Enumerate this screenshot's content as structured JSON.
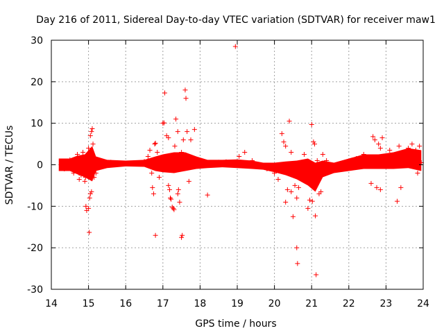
{
  "chart_data": {
    "type": "scatter",
    "title": "Day 216 of 2011, Sidereal Day-to-day VTEC variation (SDTVAR) for receiver maw1",
    "xlabel": "GPS time / hours",
    "ylabel": "SDTVAR / TECUs",
    "xlim": [
      14,
      24
    ],
    "ylim": [
      -30,
      30
    ],
    "x_ticks": [
      14,
      15,
      16,
      17,
      18,
      19,
      20,
      21,
      22,
      23,
      24
    ],
    "y_ticks": [
      -30,
      -20,
      -10,
      0,
      10,
      20,
      30
    ],
    "x_tick_labels": [
      "14",
      "15",
      "16",
      "17",
      "18",
      "19",
      "20",
      "21",
      "22",
      "23",
      "24"
    ],
    "y_tick_labels": [
      "-30",
      "-20",
      "-10",
      "0",
      "10",
      "20",
      "30"
    ],
    "grid": true,
    "marker": "+",
    "series_color": "#ff0000",
    "series": [
      {
        "name": "SDTVAR",
        "points": [
          [
            14.3,
            0.5
          ],
          [
            14.35,
            -1.0
          ],
          [
            14.5,
            1.2
          ],
          [
            14.6,
            -2.0
          ],
          [
            14.7,
            2.5
          ],
          [
            14.75,
            -3.5
          ],
          [
            14.8,
            -2.5
          ],
          [
            14.85,
            3.0
          ],
          [
            14.9,
            -4.0
          ],
          [
            14.92,
            -3.0
          ],
          [
            15.0,
            4.0
          ],
          [
            15.05,
            7.0
          ],
          [
            15.08,
            8.0
          ],
          [
            15.1,
            8.7
          ],
          [
            15.12,
            5.0
          ],
          [
            15.15,
            -3.0
          ],
          [
            15.2,
            -2.0
          ],
          [
            14.93,
            -10.0
          ],
          [
            14.95,
            -11.0
          ],
          [
            15.0,
            -10.5
          ],
          [
            15.03,
            -8.0
          ],
          [
            15.05,
            -7.0
          ],
          [
            15.08,
            -6.5
          ],
          [
            15.02,
            -16.3
          ],
          [
            15.3,
            1.0
          ],
          [
            15.6,
            0.6
          ],
          [
            16.0,
            0.3
          ],
          [
            16.3,
            0.4
          ],
          [
            16.5,
            0.8
          ],
          [
            16.6,
            2.0
          ],
          [
            16.65,
            3.5
          ],
          [
            16.7,
            -2.0
          ],
          [
            16.72,
            -5.5
          ],
          [
            16.75,
            -7.0
          ],
          [
            16.78,
            5.0
          ],
          [
            16.8,
            5.2
          ],
          [
            16.85,
            3.0
          ],
          [
            16.8,
            -17.0
          ],
          [
            16.9,
            -3.0
          ],
          [
            17.0,
            10.0
          ],
          [
            17.03,
            10.1
          ],
          [
            17.05,
            17.3
          ],
          [
            17.1,
            7.0
          ],
          [
            17.15,
            6.5
          ],
          [
            17.15,
            -5.0
          ],
          [
            17.18,
            -6.0
          ],
          [
            17.2,
            -8.0
          ],
          [
            17.22,
            -8.3
          ],
          [
            17.25,
            -10.2
          ],
          [
            17.28,
            -10.5
          ],
          [
            17.3,
            -10.8
          ],
          [
            17.32,
            4.5
          ],
          [
            17.35,
            11.0
          ],
          [
            17.4,
            8.0
          ],
          [
            17.4,
            -7.0
          ],
          [
            17.42,
            -6.0
          ],
          [
            17.45,
            -9.0
          ],
          [
            17.5,
            3.0
          ],
          [
            17.5,
            -17.5
          ],
          [
            17.52,
            -17.0
          ],
          [
            17.55,
            6.0
          ],
          [
            17.6,
            18.0
          ],
          [
            17.62,
            16.0
          ],
          [
            17.65,
            8.0
          ],
          [
            17.7,
            -4.0
          ],
          [
            17.75,
            6.0
          ],
          [
            17.85,
            8.5
          ],
          [
            18.0,
            1.0
          ],
          [
            18.2,
            -7.3
          ],
          [
            18.3,
            0.5
          ],
          [
            18.5,
            0.6
          ],
          [
            18.7,
            0.7
          ],
          [
            18.95,
            28.5
          ],
          [
            19.05,
            2.0
          ],
          [
            19.2,
            3.0
          ],
          [
            19.4,
            1.0
          ],
          [
            19.6,
            -0.5
          ],
          [
            19.8,
            -1.0
          ],
          [
            20.0,
            -2.0
          ],
          [
            20.1,
            -3.5
          ],
          [
            20.2,
            7.5
          ],
          [
            20.25,
            5.5
          ],
          [
            20.3,
            4.5
          ],
          [
            20.3,
            -9.0
          ],
          [
            20.35,
            -6.0
          ],
          [
            20.4,
            10.5
          ],
          [
            20.45,
            3.0
          ],
          [
            20.45,
            -6.5
          ],
          [
            20.5,
            -12.5
          ],
          [
            20.55,
            -5.0
          ],
          [
            20.6,
            -8.0
          ],
          [
            20.6,
            -20.0
          ],
          [
            20.62,
            -23.8
          ],
          [
            20.65,
            -5.5
          ],
          [
            20.7,
            -3.0
          ],
          [
            20.8,
            2.5
          ],
          [
            20.9,
            -10.5
          ],
          [
            20.95,
            -8.5
          ],
          [
            21.0,
            9.7
          ],
          [
            21.02,
            -8.8
          ],
          [
            21.05,
            5.5
          ],
          [
            21.08,
            5.0
          ],
          [
            21.1,
            -12.3
          ],
          [
            21.12,
            -26.5
          ],
          [
            21.15,
            1.0
          ],
          [
            21.2,
            -7.0
          ],
          [
            21.25,
            -6.5
          ],
          [
            21.3,
            2.5
          ],
          [
            21.4,
            1.0
          ],
          [
            21.6,
            -0.6
          ],
          [
            21.8,
            -1.0
          ],
          [
            22.0,
            0.5
          ],
          [
            22.2,
            1.5
          ],
          [
            22.4,
            2.5
          ],
          [
            22.6,
            -4.5
          ],
          [
            22.65,
            6.8
          ],
          [
            22.7,
            6.0
          ],
          [
            22.75,
            -5.5
          ],
          [
            22.8,
            5.0
          ],
          [
            22.85,
            4.0
          ],
          [
            22.85,
            -6.0
          ],
          [
            22.9,
            6.5
          ],
          [
            23.0,
            2.0
          ],
          [
            23.1,
            3.5
          ],
          [
            23.2,
            1.5
          ],
          [
            23.3,
            -8.8
          ],
          [
            23.35,
            4.5
          ],
          [
            23.4,
            -5.5
          ],
          [
            23.5,
            3.0
          ],
          [
            23.6,
            4.0
          ],
          [
            23.7,
            5.0
          ],
          [
            23.8,
            3.5
          ],
          [
            23.85,
            -2.0
          ],
          [
            23.9,
            4.5
          ],
          [
            23.95,
            0.5
          ]
        ]
      }
    ],
    "dense_band": [
      [
        14.2,
        1.5,
        -1.5
      ],
      [
        14.5,
        1.5,
        -1.5
      ],
      [
        14.7,
        2.2,
        -2.3
      ],
      [
        14.9,
        2.5,
        -3.0
      ],
      [
        15.0,
        3.5,
        -3.5
      ],
      [
        15.1,
        4.5,
        -4.0
      ],
      [
        15.2,
        2.0,
        -1.5
      ],
      [
        15.5,
        1.2,
        -0.8
      ],
      [
        16.0,
        1.0,
        -0.4
      ],
      [
        16.5,
        1.2,
        -0.5
      ],
      [
        16.8,
        2.0,
        -1.5
      ],
      [
        17.0,
        2.5,
        -1.8
      ],
      [
        17.3,
        3.0,
        -2.0
      ],
      [
        17.6,
        3.0,
        -1.5
      ],
      [
        17.9,
        2.0,
        -1.0
      ],
      [
        18.2,
        1.2,
        -0.8
      ],
      [
        18.6,
        1.2,
        -0.6
      ],
      [
        19.0,
        1.3,
        -0.8
      ],
      [
        19.4,
        1.0,
        -1.0
      ],
      [
        19.7,
        0.5,
        -1.2
      ],
      [
        20.0,
        0.5,
        -1.8
      ],
      [
        20.3,
        0.8,
        -2.5
      ],
      [
        20.6,
        1.0,
        -3.5
      ],
      [
        20.9,
        1.5,
        -5.0
      ],
      [
        21.1,
        0.5,
        -6.5
      ],
      [
        21.3,
        1.0,
        -3.0
      ],
      [
        21.6,
        0.5,
        -2.0
      ],
      [
        22.0,
        1.5,
        -1.5
      ],
      [
        22.4,
        2.5,
        -1.0
      ],
      [
        22.8,
        2.5,
        -1.0
      ],
      [
        23.2,
        3.0,
        -1.0
      ],
      [
        23.6,
        4.0,
        -0.8
      ],
      [
        23.95,
        3.5,
        -1.5
      ]
    ]
  }
}
